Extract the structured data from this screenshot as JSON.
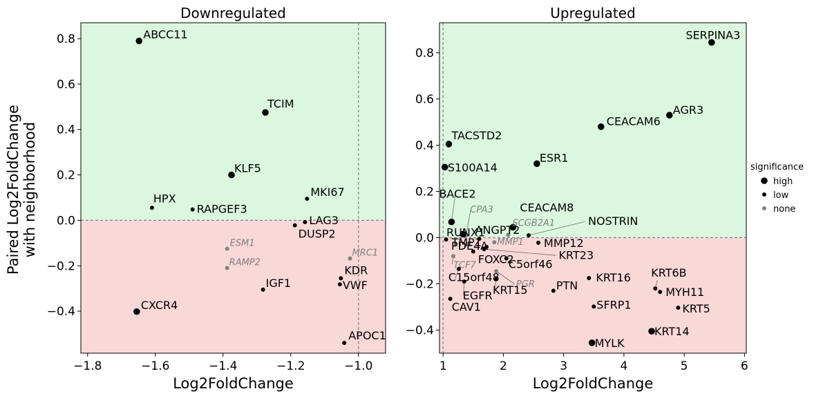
{
  "chart_data": [
    {
      "type": "scatter",
      "title": "Downregulated",
      "xlabel": "Log2FoldChange",
      "ylabel_lines": [
        "Paired Log2FoldChange",
        "with neighborhood"
      ],
      "xlim": [
        -1.82,
        -0.92
      ],
      "ylim": [
        -0.585,
        0.87
      ],
      "xticks": [
        -1.8,
        -1.6,
        -1.4,
        -1.2,
        -1.0
      ],
      "xtick_labels": [
        "−1.8",
        "−1.6",
        "−1.4",
        "−1.2",
        "−1.0"
      ],
      "yticks": [
        -0.4,
        -0.2,
        0.0,
        0.2,
        0.4,
        0.6,
        0.8
      ],
      "ytick_labels": [
        "−0.4",
        "−0.2",
        "0.0",
        "0.2",
        "0.4",
        "0.6",
        "0.8"
      ],
      "hline": 0.0,
      "vline": -1.0,
      "points": [
        {
          "label": "ABCC11",
          "x": -1.648,
          "y": 0.79,
          "significance": "high"
        },
        {
          "label": "TCIM",
          "x": -1.275,
          "y": 0.475,
          "significance": "high"
        },
        {
          "label": "KLF5",
          "x": -1.375,
          "y": 0.2,
          "significance": "high"
        },
        {
          "label": "HPX",
          "x": -1.61,
          "y": 0.055,
          "significance": "low"
        },
        {
          "label": "RAPGEF3",
          "x": -1.49,
          "y": 0.048,
          "significance": "low"
        },
        {
          "label": "MKI67",
          "x": -1.152,
          "y": 0.095,
          "significance": "low"
        },
        {
          "label": "LAG3",
          "x": -1.158,
          "y": -0.008,
          "significance": "low"
        },
        {
          "label": "DUSP2",
          "x": -1.188,
          "y": -0.022,
          "significance": "low"
        },
        {
          "label": "ESM1",
          "x": -1.388,
          "y": -0.125,
          "significance": "none"
        },
        {
          "label": "RAMP2",
          "x": -1.388,
          "y": -0.21,
          "significance": "none"
        },
        {
          "label": "MRC1",
          "x": -1.025,
          "y": -0.168,
          "significance": "none"
        },
        {
          "label": "KDR",
          "x": -1.052,
          "y": -0.255,
          "significance": "low"
        },
        {
          "label": "VWF",
          "x": -1.055,
          "y": -0.282,
          "significance": "low"
        },
        {
          "label": "IGF1",
          "x": -1.282,
          "y": -0.305,
          "significance": "low"
        },
        {
          "label": "CXCR4",
          "x": -1.655,
          "y": -0.402,
          "significance": "high"
        },
        {
          "label": "APOC1",
          "x": -1.042,
          "y": -0.54,
          "significance": "low"
        }
      ]
    },
    {
      "type": "scatter",
      "title": "Upregulated",
      "xlabel": "Log2FoldChange",
      "xlim": [
        0.94,
        6.03
      ],
      "ylim": [
        -0.5,
        0.93
      ],
      "xticks": [
        1,
        2,
        3,
        4,
        5,
        6
      ],
      "xtick_labels": [
        "1",
        "2",
        "3",
        "4",
        "5",
        "6"
      ],
      "yticks": [
        -0.4,
        -0.2,
        0.0,
        0.2,
        0.4,
        0.6,
        0.8
      ],
      "ytick_labels": [
        "−0.4",
        "−0.2",
        "0.0",
        "0.2",
        "0.4",
        "0.6",
        "0.8"
      ],
      "hline": 0.0,
      "vline": 1.0,
      "points": [
        {
          "label": "SERPINA3",
          "x": 5.455,
          "y": 0.845,
          "significance": "high"
        },
        {
          "label": "AGR3",
          "x": 4.755,
          "y": 0.53,
          "significance": "high"
        },
        {
          "label": "CEACAM6",
          "x": 3.62,
          "y": 0.48,
          "significance": "high"
        },
        {
          "label": "TACSTD2",
          "x": 1.095,
          "y": 0.405,
          "significance": "high"
        },
        {
          "label": "ESR1",
          "x": 2.555,
          "y": 0.32,
          "significance": "high"
        },
        {
          "label": "S100A14",
          "x": 1.03,
          "y": 0.305,
          "significance": "high"
        },
        {
          "label": "BACE2",
          "x": 1.14,
          "y": 0.068,
          "significance": "high"
        },
        {
          "label": "CPA3",
          "x": 1.38,
          "y": 0.01,
          "significance": "none"
        },
        {
          "label": "CEACAM8",
          "x": 2.16,
          "y": 0.045,
          "significance": "high"
        },
        {
          "label": "SCGB2A1",
          "x": 2.08,
          "y": 0.012,
          "significance": "none"
        },
        {
          "label": "NOSTRIN",
          "x": 2.42,
          "y": 0.01,
          "significance": "low"
        },
        {
          "label": "RUNX1",
          "x": 1.33,
          "y": 0.015,
          "significance": "high"
        },
        {
          "label": "ANGPT2",
          "x": 1.6,
          "y": -0.005,
          "significance": "low"
        },
        {
          "label": "TMP1",
          "x": 1.05,
          "y": -0.008,
          "significance": "low"
        },
        {
          "label": "MMP12",
          "x": 2.58,
          "y": -0.022,
          "significance": "low"
        },
        {
          "label": "MMP1",
          "x": 1.85,
          "y": -0.02,
          "significance": "none"
        },
        {
          "label": "PDE4A",
          "x": 1.72,
          "y": -0.04,
          "significance": "low"
        },
        {
          "label": "KRT23",
          "x": 1.68,
          "y": -0.05,
          "significance": "low"
        },
        {
          "label": "C5orf46",
          "x": 2.05,
          "y": -0.09,
          "significance": "low"
        },
        {
          "label": "FOXC2",
          "x": 1.5,
          "y": -0.06,
          "significance": "low"
        },
        {
          "label": "TCF7",
          "x": 1.17,
          "y": -0.08,
          "significance": "none"
        },
        {
          "label": "C15orf48",
          "x": 1.26,
          "y": -0.135,
          "significance": "low"
        },
        {
          "label": "PGR",
          "x": 1.88,
          "y": -0.145,
          "significance": "none"
        },
        {
          "label": "KRT15",
          "x": 1.88,
          "y": -0.18,
          "significance": "low"
        },
        {
          "label": "EGFR",
          "x": 1.35,
          "y": -0.19,
          "significance": "low"
        },
        {
          "label": "CAV1",
          "x": 1.12,
          "y": -0.265,
          "significance": "low"
        },
        {
          "label": "PTN",
          "x": 2.83,
          "y": -0.23,
          "significance": "low"
        },
        {
          "label": "KRT16",
          "x": 3.42,
          "y": -0.175,
          "significance": "low"
        },
        {
          "label": "SFRP1",
          "x": 3.5,
          "y": -0.298,
          "significance": "low"
        },
        {
          "label": "KRT6B",
          "x": 4.52,
          "y": -0.22,
          "significance": "low"
        },
        {
          "label": "MYH11",
          "x": 4.6,
          "y": -0.235,
          "significance": "low"
        },
        {
          "label": "KRT5",
          "x": 4.9,
          "y": -0.303,
          "significance": "low"
        },
        {
          "label": "KRT14",
          "x": 4.46,
          "y": -0.405,
          "significance": "high"
        },
        {
          "label": "MYLK",
          "x": 3.47,
          "y": -0.455,
          "significance": "high"
        }
      ]
    }
  ],
  "legend": {
    "title": "significance",
    "placement": "right",
    "items": [
      {
        "label": "high",
        "color": "#000000"
      },
      {
        "label": "low",
        "color": "#000000"
      },
      {
        "label": "none",
        "color": "#808080"
      }
    ]
  },
  "colors": {
    "positive_region": "#dbf8de",
    "negative_region": "#f9d8d8",
    "point_sig": "#000000",
    "point_none": "#808080",
    "ref_line": "#808080"
  }
}
